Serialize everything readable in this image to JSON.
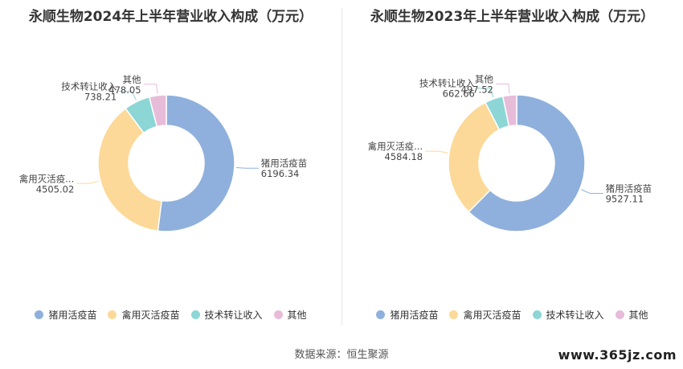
{
  "colors": {
    "猪用活疫苗": "#8fb0dc",
    "禽用灭活疫苗": "#fcd998",
    "技术转让收入": "#8cd6d6",
    "其他": "#e7bcd9"
  },
  "source": "数据来源：恒生聚源",
  "watermark": "www.365jz.com",
  "chart_data": [
    {
      "type": "pie",
      "title": "永顺生物2024年上半年营业收入构成（万元）",
      "legend_position": "bottom",
      "categories": [
        "猪用活疫苗",
        "禽用灭活疫苗",
        "技术转让收入",
        "其他"
      ],
      "label_names": [
        "猪用活疫苗",
        "禽用灭活疫...",
        "技术转让收入",
        "其他"
      ],
      "values": [
        6196.34,
        4505.02,
        738.21,
        478.05
      ],
      "value_labels": [
        "6196.34",
        "4505.02",
        "738.21",
        "478.05"
      ]
    },
    {
      "type": "pie",
      "title": "永顺生物2023年上半年营业收入构成（万元）",
      "legend_position": "bottom",
      "categories": [
        "猪用活疫苗",
        "禽用灭活疫苗",
        "技术转让收入",
        "其他"
      ],
      "label_names": [
        "猪用活疫苗",
        "禽用灭活疫...",
        "技术转让收入",
        "其他"
      ],
      "values": [
        9527.11,
        4584.18,
        662.66,
        497.52
      ],
      "value_labels": [
        "9527.11",
        "4584.18",
        "662.66",
        "497.52"
      ]
    }
  ]
}
